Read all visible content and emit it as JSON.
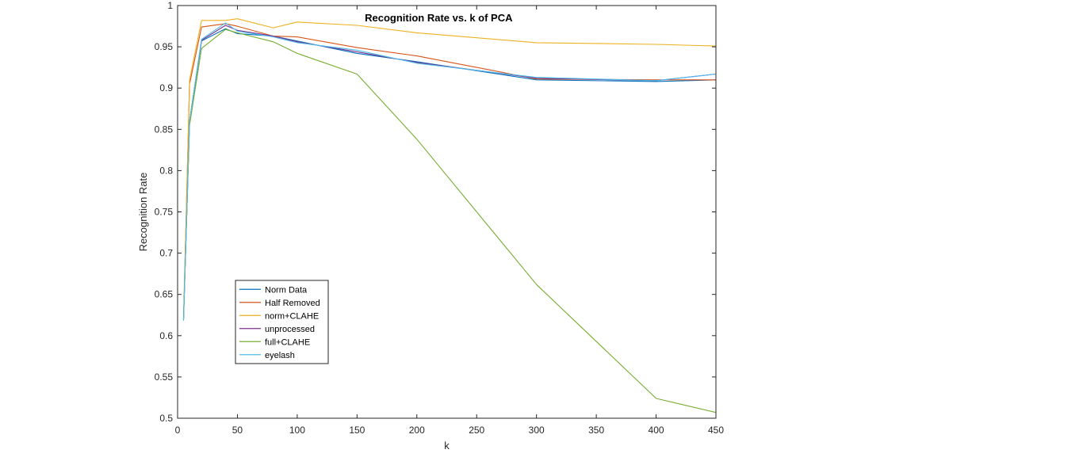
{
  "chart_data": {
    "type": "line",
    "title": "Recognition Rate vs. k of PCA",
    "xlabel": "k",
    "ylabel": "Recognition Rate",
    "xlim": [
      0,
      450
    ],
    "ylim": [
      0.5,
      1
    ],
    "xticks": [
      0,
      50,
      100,
      150,
      200,
      250,
      300,
      350,
      400,
      450
    ],
    "yticks": [
      0.5,
      0.55,
      0.6,
      0.65,
      0.7,
      0.75,
      0.8,
      0.85,
      0.9,
      0.95,
      1
    ],
    "xtick_labels": [
      "0",
      "50",
      "100",
      "150",
      "200",
      "250",
      "300",
      "350",
      "400",
      "450"
    ],
    "ytick_labels": [
      "0.5",
      "0.55",
      "0.6",
      "0.65",
      "0.7",
      "0.75",
      "0.8",
      "0.85",
      "0.9",
      "0.95",
      "1"
    ],
    "grid": false,
    "legend_position": "lower-left",
    "series": [
      {
        "name": "Norm Data",
        "color": "#0072BD",
        "x": [
          5,
          10,
          20,
          40,
          50,
          80,
          100,
          150,
          200,
          300,
          400,
          450
        ],
        "y": [
          0.62,
          0.86,
          0.957,
          0.972,
          0.966,
          0.963,
          0.957,
          0.942,
          0.932,
          0.91,
          0.908,
          0.91
        ]
      },
      {
        "name": "Half Removed",
        "color": "#D95319",
        "x": [
          5,
          10,
          20,
          40,
          50,
          80,
          100,
          150,
          200,
          300,
          400,
          450
        ],
        "y": [
          0.62,
          0.905,
          0.974,
          0.978,
          0.975,
          0.963,
          0.962,
          0.949,
          0.939,
          0.911,
          0.91,
          0.91
        ]
      },
      {
        "name": " norm+CLAHE",
        "color": "#EDB120",
        "x": [
          5,
          10,
          20,
          40,
          50,
          80,
          100,
          150,
          200,
          300,
          400,
          450
        ],
        "y": [
          0.62,
          0.91,
          0.982,
          0.982,
          0.984,
          0.973,
          0.98,
          0.976,
          0.967,
          0.955,
          0.953,
          0.951
        ]
      },
      {
        "name": "unprocessed",
        "color": "#7E2F8E",
        "x": [
          5,
          10,
          20,
          40,
          50,
          80,
          100,
          150,
          200,
          300,
          400,
          450
        ],
        "y": [
          0.62,
          0.86,
          0.958,
          0.976,
          0.97,
          0.963,
          0.956,
          0.944,
          0.931,
          0.912,
          0.909,
          0.917
        ]
      },
      {
        "name": "full+CLAHE",
        "color": "#77AC30",
        "x": [
          5,
          10,
          20,
          40,
          50,
          80,
          100,
          150,
          200,
          300,
          400,
          450
        ],
        "y": [
          0.62,
          0.855,
          0.948,
          0.971,
          0.967,
          0.956,
          0.942,
          0.917,
          0.838,
          0.662,
          0.524,
          0.507
        ]
      },
      {
        "name": "eyelash",
        "color": "#4DBEEE",
        "x": [
          5,
          10,
          20,
          40,
          50,
          80,
          100,
          150,
          200,
          300,
          400,
          450
        ],
        "y": [
          0.618,
          0.86,
          0.959,
          0.979,
          0.969,
          0.962,
          0.955,
          0.946,
          0.93,
          0.913,
          0.909,
          0.917
        ]
      }
    ]
  }
}
